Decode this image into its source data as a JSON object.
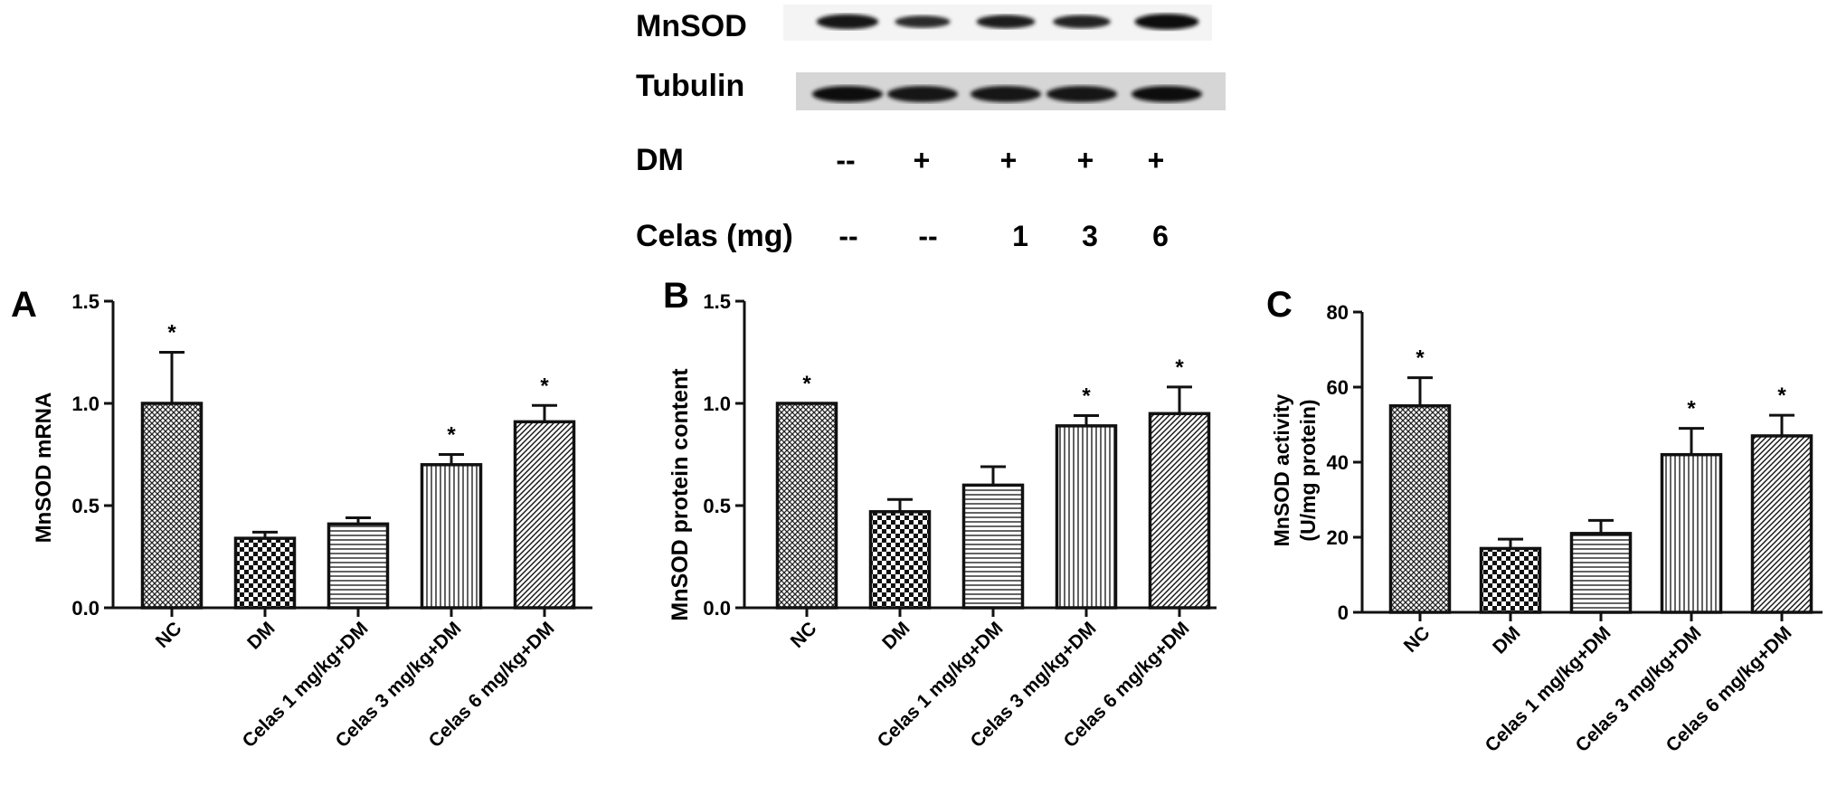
{
  "blot": {
    "rows": [
      {
        "label": "MnSOD",
        "intensities": [
          0.85,
          0.55,
          0.7,
          0.65,
          0.95
        ]
      },
      {
        "label": "Tubulin",
        "intensities": [
          0.9,
          0.85,
          0.88,
          0.87,
          0.9
        ]
      }
    ],
    "treatments": [
      {
        "label": "DM",
        "values": [
          "--",
          "+",
          "+",
          "+",
          "+"
        ]
      },
      {
        "label": "Celas (mg)",
        "values": [
          "--",
          "--",
          "1",
          "3",
          "6"
        ]
      }
    ]
  },
  "chart_data": [
    {
      "type": "bar",
      "panel_label": "A",
      "ylabel": "MnSOD mRNA",
      "ylabel2": "",
      "ylim": [
        0,
        1.5
      ],
      "yticks": [
        "0.0",
        "0.5",
        "1.0",
        "1.5"
      ],
      "categories": [
        "NC",
        "DM",
        "Celas 1 mg/kg+DM",
        "Celas 3 mg/kg+DM",
        "Celas 6 mg/kg+DM"
      ],
      "values": [
        1.0,
        0.34,
        0.41,
        0.7,
        0.91
      ],
      "errors": [
        0.25,
        0.03,
        0.03,
        0.05,
        0.08
      ],
      "significance": [
        "*",
        "",
        "",
        "*",
        "*"
      ],
      "patterns": [
        "crosshatch",
        "checker",
        "horizontal",
        "vertical",
        "diagonal"
      ]
    },
    {
      "type": "bar",
      "panel_label": "B",
      "ylabel": "MnSOD protein content",
      "ylabel2": "",
      "ylim": [
        0,
        1.5
      ],
      "yticks": [
        "0.0",
        "0.5",
        "1.0",
        "1.5"
      ],
      "categories": [
        "NC",
        "DM",
        "Celas 1 mg/kg+DM",
        "Celas 3 mg/kg+DM",
        "Celas 6 mg/kg+DM"
      ],
      "values": [
        1.0,
        0.47,
        0.6,
        0.89,
        0.95
      ],
      "errors": [
        0.0,
        0.06,
        0.09,
        0.05,
        0.13
      ],
      "significance": [
        "*",
        "",
        "",
        "*",
        "*"
      ],
      "patterns": [
        "crosshatch",
        "checker",
        "horizontal",
        "vertical",
        "diagonal"
      ]
    },
    {
      "type": "bar",
      "panel_label": "C",
      "ylabel": "MnSOD activity",
      "ylabel2": "(U/mg protein)",
      "ylim": [
        0,
        80
      ],
      "yticks": [
        "0",
        "20",
        "40",
        "60",
        "80"
      ],
      "categories": [
        "NC",
        "DM",
        "Celas 1 mg/kg+DM",
        "Celas 3 mg/kg+DM",
        "Celas 6 mg/kg+DM"
      ],
      "values": [
        55,
        17,
        21,
        42,
        47
      ],
      "errors": [
        7.5,
        2.5,
        3.5,
        7,
        5.5
      ],
      "significance": [
        "*",
        "",
        "",
        "*",
        "*"
      ],
      "patterns": [
        "crosshatch",
        "checker",
        "horizontal",
        "vertical",
        "diagonal"
      ]
    }
  ]
}
